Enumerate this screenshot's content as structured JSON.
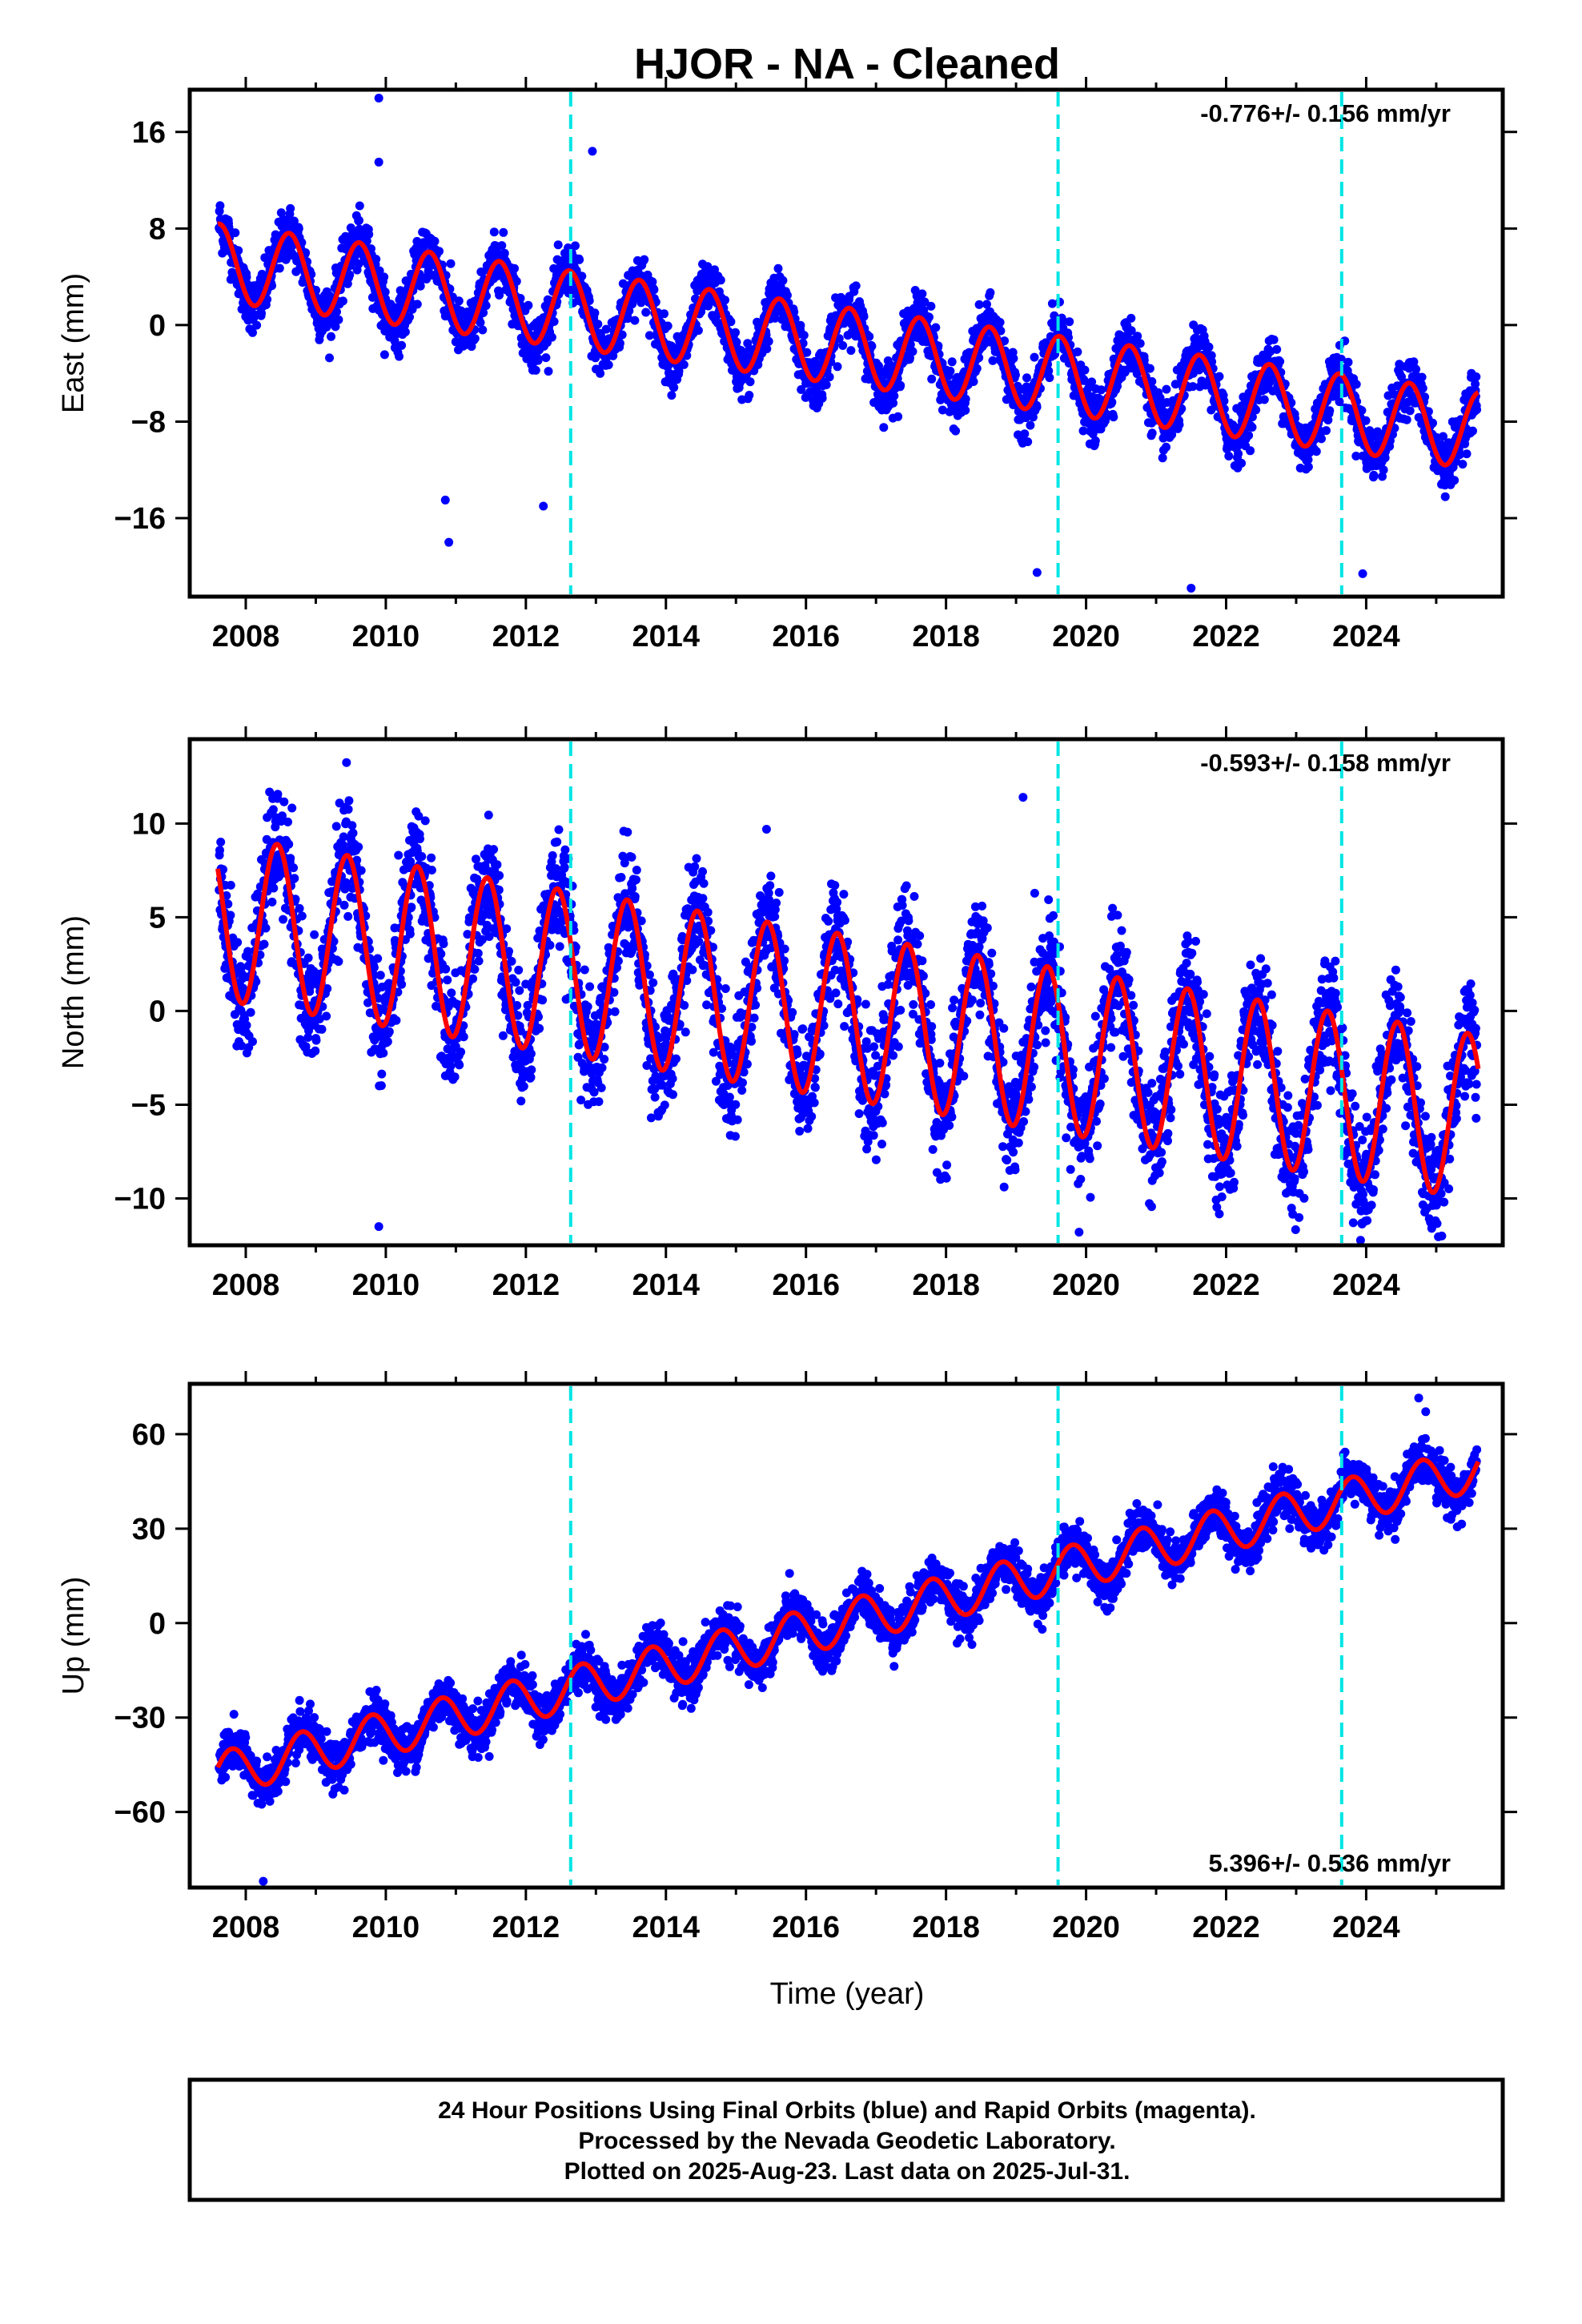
{
  "title": "HJOR  - NA - Cleaned",
  "chart_data": [
    {
      "type": "scatter",
      "panel": "east",
      "ylabel": "East (mm)",
      "rate_text": "-0.776+/- 0.156 mm/yr",
      "xlim": [
        2007.2,
        2025.95
      ],
      "ylim": [
        -22.5,
        19.5
      ],
      "yticks": [
        16,
        8,
        0,
        -8,
        -16
      ],
      "ytick_labels": [
        "16",
        "8",
        "0",
        "−8",
        "−16"
      ],
      "xticks": [
        2008,
        2010,
        2012,
        2014,
        2016,
        2018,
        2020,
        2022,
        2024
      ],
      "trend": {
        "start_x": 2007.6,
        "start_y": 5.2,
        "slope": -0.776
      },
      "annual_amp": 3.2,
      "annual_peak_phase": 0.62,
      "scatter_sd": 1.1,
      "outliers": [
        [
          2009.9,
          18.8
        ],
        [
          2009.9,
          13.5
        ],
        [
          2012.95,
          14.4
        ],
        [
          2010.85,
          -14.5
        ],
        [
          2010.9,
          -18.0
        ],
        [
          2012.25,
          -15.0
        ],
        [
          2019.3,
          -20.5
        ],
        [
          2021.5,
          -21.8
        ],
        [
          2023.95,
          -20.6
        ]
      ],
      "model_series": "red",
      "dots_series": "blue"
    },
    {
      "type": "scatter",
      "panel": "north",
      "ylabel": "North (mm)",
      "rate_text": "-0.593+/- 0.158 mm/yr",
      "xlim": [
        2007.2,
        2025.95
      ],
      "ylim": [
        -12.5,
        14.5
      ],
      "yticks": [
        10,
        5,
        0,
        -5,
        -10
      ],
      "ytick_labels": [
        "10",
        "5",
        "0",
        "−5",
        "−10"
      ],
      "xticks": [
        2008,
        2010,
        2012,
        2014,
        2016,
        2018,
        2020,
        2022,
        2024
      ],
      "trend": {
        "start_x": 2007.6,
        "start_y": 5.0,
        "slope": -0.593
      },
      "annual_amp": 4.4,
      "annual_peak_phase": 0.45,
      "scatter_sd": 1.5,
      "outliers": [
        [
          2009.9,
          -11.5
        ],
        [
          2019.1,
          11.4
        ],
        [
          2019.9,
          -11.8
        ],
        [
          2025.0,
          -9.8
        ]
      ],
      "model_series": "red",
      "dots_series": "blue"
    },
    {
      "type": "scatter",
      "panel": "up",
      "ylabel": "Up (mm)",
      "xlabel": "Time (year)",
      "rate_text": "5.396+/- 0.536 mm/yr",
      "xlim": [
        2007.2,
        2025.95
      ],
      "ylim": [
        -84,
        76
      ],
      "yticks": [
        60,
        30,
        0,
        -30,
        -60
      ],
      "ytick_labels": [
        "60",
        "30",
        "0",
        "−30",
        "−60"
      ],
      "xticks": [
        2008,
        2010,
        2012,
        2014,
        2016,
        2018,
        2020,
        2022,
        2024
      ],
      "trend": {
        "start_x": 2007.6,
        "start_y": -48.0,
        "slope": 5.396
      },
      "annual_amp": 7.0,
      "annual_peak_phase": 0.8,
      "scatter_sd": 3.6,
      "outliers": [
        [
          2008.25,
          -82.0
        ],
        [
          2024.75,
          71.5
        ]
      ],
      "model_series": "red",
      "dots_series": "blue"
    }
  ],
  "offset_lines_x": [
    2012.64,
    2019.6,
    2023.65
  ],
  "colors": {
    "dots": "#0000ff",
    "model": "#ff0000",
    "offset_line": "#00e5e5",
    "axis": "#000000"
  },
  "footer": {
    "line1": "24 Hour Positions Using Final Orbits (blue) and Rapid Orbits (magenta).",
    "line2": "Processed by the Nevada Geodetic Laboratory.",
    "line3": "Plotted on 2025-Aug-23. Last data on 2025-Jul-31."
  }
}
